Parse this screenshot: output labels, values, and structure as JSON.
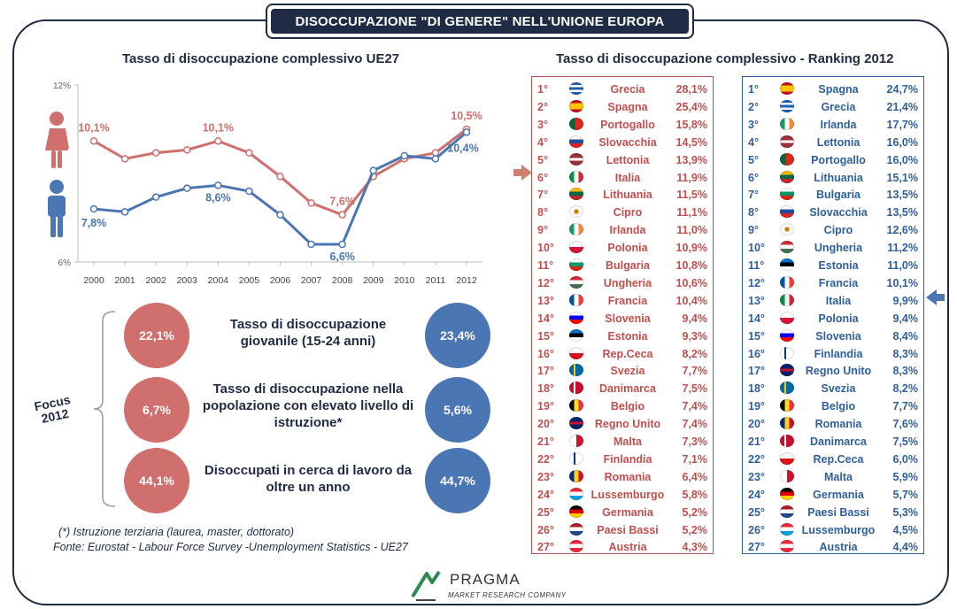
{
  "title": "DISOCCUPAZIONE \"DI GENERE\" NELL'UNIONE EUROPA",
  "colors": {
    "female": "#cf6f6e",
    "male": "#4a76b4",
    "dark": "#1f2a44"
  },
  "chart_data": {
    "type": "line",
    "title": "Tasso di disoccupazione complessivo UE27",
    "x": [
      "2000",
      "2001",
      "2002",
      "2003",
      "2004",
      "2005",
      "2006",
      "2007",
      "2008",
      "2009",
      "2010",
      "2011",
      "2012"
    ],
    "series": [
      {
        "name": "female",
        "color": "#cf6f6e",
        "values": [
          10.1,
          9.5,
          9.7,
          9.8,
          10.1,
          9.7,
          8.9,
          8.0,
          7.6,
          8.9,
          9.5,
          9.7,
          10.5
        ]
      },
      {
        "name": "male",
        "color": "#4a76b4",
        "values": [
          7.8,
          7.7,
          8.2,
          8.5,
          8.6,
          8.4,
          7.6,
          6.6,
          6.6,
          9.1,
          9.6,
          9.5,
          10.4
        ]
      }
    ],
    "data_labels": [
      {
        "series": 0,
        "index": 0,
        "text": "10,1%"
      },
      {
        "series": 0,
        "index": 4,
        "text": "10,1%"
      },
      {
        "series": 0,
        "index": 8,
        "text": "7,6%"
      },
      {
        "series": 0,
        "index": 12,
        "text": "10,5%"
      },
      {
        "series": 1,
        "index": 0,
        "text": "7,8%"
      },
      {
        "series": 1,
        "index": 4,
        "text": "8,6%"
      },
      {
        "series": 1,
        "index": 8,
        "text": "6,6%"
      },
      {
        "series": 1,
        "index": 12,
        "text": "10,4%"
      }
    ],
    "ylim": [
      6,
      12
    ],
    "yticks": [
      "12%",
      "6%"
    ],
    "grid": false
  },
  "ranking_title": "Tasso di disoccupazione complessivo - Ranking 2012",
  "ranking_female": [
    {
      "rank": "1°",
      "country": "Grecia",
      "value": "28,1%",
      "flag": "gr"
    },
    {
      "rank": "2°",
      "country": "Spagna",
      "value": "25,4%",
      "flag": "es"
    },
    {
      "rank": "3°",
      "country": "Portogallo",
      "value": "15,8%",
      "flag": "pt"
    },
    {
      "rank": "4°",
      "country": "Slovacchia",
      "value": "14,5%",
      "flag": "sk"
    },
    {
      "rank": "5°",
      "country": "Lettonia",
      "value": "13,9%",
      "flag": "lv"
    },
    {
      "rank": "6°",
      "country": "Italia",
      "value": "11,9%",
      "flag": "it"
    },
    {
      "rank": "7°",
      "country": "Lithuania",
      "value": "11,5%",
      "flag": "lt"
    },
    {
      "rank": "8°",
      "country": "Cipro",
      "value": "11,1%",
      "flag": "cy"
    },
    {
      "rank": "9°",
      "country": "Irlanda",
      "value": "11,0%",
      "flag": "ie"
    },
    {
      "rank": "10°",
      "country": "Polonia",
      "value": "10,9%",
      "flag": "pl"
    },
    {
      "rank": "11°",
      "country": "Bulgaria",
      "value": "10,8%",
      "flag": "bg"
    },
    {
      "rank": "12°",
      "country": "Ungheria",
      "value": "10,6%",
      "flag": "hu"
    },
    {
      "rank": "13°",
      "country": "Francia",
      "value": "10,4%",
      "flag": "fr"
    },
    {
      "rank": "14°",
      "country": "Slovenia",
      "value": "9,4%",
      "flag": "si"
    },
    {
      "rank": "15°",
      "country": "Estonia",
      "value": "9,3%",
      "flag": "ee"
    },
    {
      "rank": "16°",
      "country": "Rep.Ceca",
      "value": "8,2%",
      "flag": "cz"
    },
    {
      "rank": "17°",
      "country": "Svezia",
      "value": "7,7%",
      "flag": "se"
    },
    {
      "rank": "18°",
      "country": "Danimarca",
      "value": "7,5%",
      "flag": "dk"
    },
    {
      "rank": "19°",
      "country": "Belgio",
      "value": "7,4%",
      "flag": "be"
    },
    {
      "rank": "20°",
      "country": "Regno Unito",
      "value": "7,4%",
      "flag": "uk"
    },
    {
      "rank": "21°",
      "country": "Malta",
      "value": "7,3%",
      "flag": "mt"
    },
    {
      "rank": "22°",
      "country": "Finlandia",
      "value": "7,1%",
      "flag": "fi"
    },
    {
      "rank": "23°",
      "country": "Romania",
      "value": "6,4%",
      "flag": "ro"
    },
    {
      "rank": "24°",
      "country": "Lussemburgo",
      "value": "5,8%",
      "flag": "lu"
    },
    {
      "rank": "25°",
      "country": "Germania",
      "value": "5,2%",
      "flag": "de"
    },
    {
      "rank": "26°",
      "country": "Paesi Bassi",
      "value": "5,2%",
      "flag": "nl"
    },
    {
      "rank": "27°",
      "country": "Austria",
      "value": "4,3%",
      "flag": "at"
    }
  ],
  "ranking_male": [
    {
      "rank": "1°",
      "country": "Spagna",
      "value": "24,7%",
      "flag": "es"
    },
    {
      "rank": "2°",
      "country": "Grecia",
      "value": "21,4%",
      "flag": "gr"
    },
    {
      "rank": "3°",
      "country": "Irlanda",
      "value": "17,7%",
      "flag": "ie"
    },
    {
      "rank": "4°",
      "country": "Lettonia",
      "value": "16,0%",
      "flag": "lv"
    },
    {
      "rank": "5°",
      "country": "Portogallo",
      "value": "16,0%",
      "flag": "pt"
    },
    {
      "rank": "6°",
      "country": "Lithuania",
      "value": "15,1%",
      "flag": "lt"
    },
    {
      "rank": "7°",
      "country": "Bulgaria",
      "value": "13,5%",
      "flag": "bg"
    },
    {
      "rank": "8°",
      "country": "Slovacchia",
      "value": "13,5%",
      "flag": "sk"
    },
    {
      "rank": "9°",
      "country": "Cipro",
      "value": "12,6%",
      "flag": "cy"
    },
    {
      "rank": "10°",
      "country": "Ungheria",
      "value": "11,2%",
      "flag": "hu"
    },
    {
      "rank": "11°",
      "country": "Estonia",
      "value": "11,0%",
      "flag": "ee"
    },
    {
      "rank": "12°",
      "country": "Francia",
      "value": "10,1%",
      "flag": "fr"
    },
    {
      "rank": "13°",
      "country": "Italia",
      "value": "9,9%",
      "flag": "it"
    },
    {
      "rank": "14°",
      "country": "Polonia",
      "value": "9,4%",
      "flag": "pl"
    },
    {
      "rank": "15°",
      "country": "Slovenia",
      "value": "8,4%",
      "flag": "si"
    },
    {
      "rank": "16°",
      "country": "Finlandia",
      "value": "8,3%",
      "flag": "fi"
    },
    {
      "rank": "17°",
      "country": "Regno Unito",
      "value": "8,3%",
      "flag": "uk"
    },
    {
      "rank": "18°",
      "country": "Svezia",
      "value": "8,2%",
      "flag": "se"
    },
    {
      "rank": "19°",
      "country": "Belgio",
      "value": "7,7%",
      "flag": "be"
    },
    {
      "rank": "20°",
      "country": "Romania",
      "value": "7,6%",
      "flag": "ro"
    },
    {
      "rank": "21°",
      "country": "Danimarca",
      "value": "7,5%",
      "flag": "dk"
    },
    {
      "rank": "22°",
      "country": "Rep.Ceca",
      "value": "6,0%",
      "flag": "cz"
    },
    {
      "rank": "23°",
      "country": "Malta",
      "value": "5,9%",
      "flag": "mt"
    },
    {
      "rank": "24°",
      "country": "Germania",
      "value": "5,7%",
      "flag": "de"
    },
    {
      "rank": "25°",
      "country": "Paesi Bassi",
      "value": "5,3%",
      "flag": "nl"
    },
    {
      "rank": "26°",
      "country": "Lussemburgo",
      "value": "4,5%",
      "flag": "lu"
    },
    {
      "rank": "27°",
      "country": "Austria",
      "value": "4,4%",
      "flag": "at"
    }
  ],
  "focus": {
    "label": "Focus\n2012",
    "items": [
      {
        "text": "Tasso di disoccupazione giovanile (15-24 anni)",
        "female": "22,1%",
        "male": "23,4%"
      },
      {
        "text": "Tasso di disoccupazione nella popolazione con elevato livello di istruzione*",
        "female": "6,7%",
        "male": "5,6%"
      },
      {
        "text": "Disoccupati in cerca di lavoro da oltre un anno",
        "female": "44,1%",
        "male": "44,7%"
      }
    ]
  },
  "notes": {
    "footnote": "(*) Istruzione terziaria  (laurea, master, dottorato)",
    "source": "Fonte: Eurostat - Labour Force Survey -Unemployment Statistics  - UE27"
  },
  "logo": {
    "name": "PRAGMA",
    "tagline": "MARKET RESEARCH COMPANY"
  },
  "icons": {
    "female": "woman-icon",
    "male": "man-icon",
    "arrow_female": "arrow-right-icon",
    "arrow_male": "arrow-left-icon"
  }
}
